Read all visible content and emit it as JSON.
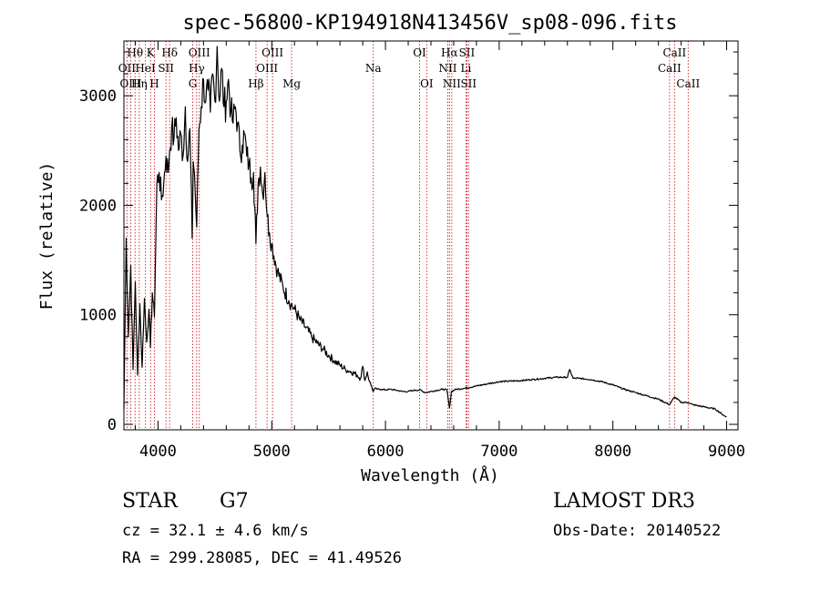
{
  "chart_data": {
    "type": "line",
    "title": "spec-56800-KP194918N413456V_sp08-096.fits",
    "xlabel": "Wavelength (Å)",
    "ylabel": "Flux (relative)",
    "xlim": [
      3700,
      9100
    ],
    "ylim": [
      -50,
      3500
    ],
    "xticks": [
      4000,
      5000,
      6000,
      7000,
      8000,
      9000
    ],
    "yticks": [
      0,
      1000,
      2000,
      3000
    ],
    "x_minor_step": 200,
    "y_minor_step": 200,
    "series": [
      {
        "name": "spectrum",
        "x": [
          3700,
          3720,
          3740,
          3760,
          3780,
          3800,
          3820,
          3840,
          3860,
          3880,
          3900,
          3920,
          3933,
          3950,
          3968,
          3990,
          4010,
          4030,
          4050,
          4070,
          4090,
          4102,
          4120,
          4140,
          4160,
          4180,
          4200,
          4220,
          4240,
          4260,
          4280,
          4300,
          4310,
          4320,
          4340,
          4360,
          4380,
          4400,
          4420,
          4440,
          4460,
          4480,
          4500,
          4520,
          4540,
          4560,
          4580,
          4600,
          4620,
          4640,
          4660,
          4680,
          4700,
          4720,
          4740,
          4760,
          4780,
          4800,
          4820,
          4840,
          4861,
          4880,
          4900,
          4920,
          4940,
          4960,
          4980,
          5000,
          5050,
          5100,
          5150,
          5170,
          5200,
          5250,
          5300,
          5350,
          5400,
          5450,
          5500,
          5550,
          5600,
          5650,
          5700,
          5750,
          5780,
          5800,
          5820,
          5840,
          5860,
          5880,
          5893,
          5910,
          5930,
          5960,
          6000,
          6050,
          6100,
          6150,
          6200,
          6250,
          6300,
          6350,
          6400,
          6450,
          6500,
          6540,
          6563,
          6580,
          6620,
          6700,
          6800,
          6900,
          7000,
          7100,
          7200,
          7300,
          7400,
          7500,
          7600,
          7620,
          7650,
          7700,
          7800,
          7900,
          8000,
          8100,
          8200,
          8300,
          8400,
          8498,
          8542,
          8600,
          8662,
          8700,
          8800,
          8900,
          8990,
          9000
        ],
        "y": [
          140,
          1700,
          800,
          1450,
          500,
          1300,
          450,
          1100,
          520,
          1150,
          750,
          1050,
          700,
          1200,
          980,
          2200,
          2300,
          2050,
          2200,
          2450,
          2300,
          2500,
          2700,
          2600,
          2800,
          2500,
          2650,
          2450,
          2900,
          2400,
          2700,
          1700,
          2400,
          2300,
          1800,
          2700,
          2900,
          3150,
          2950,
          3050,
          2850,
          3200,
          2950,
          3450,
          2950,
          3250,
          2900,
          2950,
          3150,
          2850,
          2750,
          2900,
          2750,
          2500,
          2550,
          2650,
          2450,
          2380,
          2250,
          2300,
          1650,
          2200,
          2350,
          2100,
          2300,
          1900,
          1750,
          1650,
          1400,
          1250,
          1130,
          1100,
          1050,
          950,
          880,
          800,
          740,
          690,
          630,
          580,
          540,
          500,
          480,
          450,
          420,
          530,
          400,
          480,
          390,
          340,
          300,
          330,
          320,
          320,
          315,
          320,
          310,
          300,
          300,
          310,
          315,
          290,
          300,
          310,
          320,
          315,
          150,
          300,
          320,
          330,
          350,
          370,
          390,
          395,
          400,
          410,
          420,
          430,
          430,
          500,
          420,
          420,
          410,
          390,
          360,
          320,
          290,
          260,
          230,
          180,
          250,
          200,
          200,
          180,
          160,
          140,
          70,
          70
        ]
      }
    ],
    "lines": [
      {
        "label": "Hθ",
        "x": 3798,
        "row": 1
      },
      {
        "label": "OII",
        "x": 3727,
        "row": 2
      },
      {
        "label": "OIII",
        "x": 3760,
        "row": 3
      },
      {
        "label": "K",
        "x": 3934,
        "row": 1
      },
      {
        "label": "HeI",
        "x": 3889,
        "row": 2
      },
      {
        "label": "Hη",
        "x": 3835,
        "row": 3
      },
      {
        "label": "SII",
        "x": 4070,
        "row": 2
      },
      {
        "label": "H",
        "x": 3968,
        "row": 3
      },
      {
        "label": "Hδ",
        "x": 4102,
        "row": 1
      },
      {
        "label": "OIII",
        "x": 4363,
        "row": 1
      },
      {
        "label": "Hγ",
        "x": 4340,
        "row": 2
      },
      {
        "label": "G",
        "x": 4305,
        "row": 3
      },
      {
        "label": "OIII",
        "x": 5007,
        "row": 1
      },
      {
        "label": "OIII",
        "x": 4959,
        "row": 2
      },
      {
        "label": "Hβ",
        "x": 4861,
        "row": 3
      },
      {
        "label": "Mg",
        "x": 5175,
        "row": 3
      },
      {
        "label": "Na",
        "x": 5893,
        "row": 2
      },
      {
        "label": "OI",
        "x": 6300,
        "row": 1
      },
      {
        "label": "OI",
        "x": 6363,
        "row": 3
      },
      {
        "label": "Hα",
        "x": 6563,
        "row": 1
      },
      {
        "label": "SII",
        "x": 6716,
        "row": 1
      },
      {
        "label": "NII",
        "x": 6548,
        "row": 2
      },
      {
        "label": "Li",
        "x": 6708,
        "row": 2
      },
      {
        "label": "NII",
        "x": 6583,
        "row": 3
      },
      {
        "label": "SII",
        "x": 6731,
        "row": 3
      },
      {
        "label": "CaII",
        "x": 8542,
        "row": 1
      },
      {
        "label": "CaII",
        "x": 8498,
        "row": 2
      },
      {
        "label": "CaII",
        "x": 8662,
        "row": 3
      }
    ]
  },
  "info": {
    "object_class": "STAR",
    "subclass": "G7",
    "survey": "LAMOST DR3",
    "cz": "cz = 32.1 ± 4.6 km/s",
    "obs_date": "Obs-Date: 20140522",
    "coords": "RA = 299.28085, DEC =  41.49526"
  }
}
